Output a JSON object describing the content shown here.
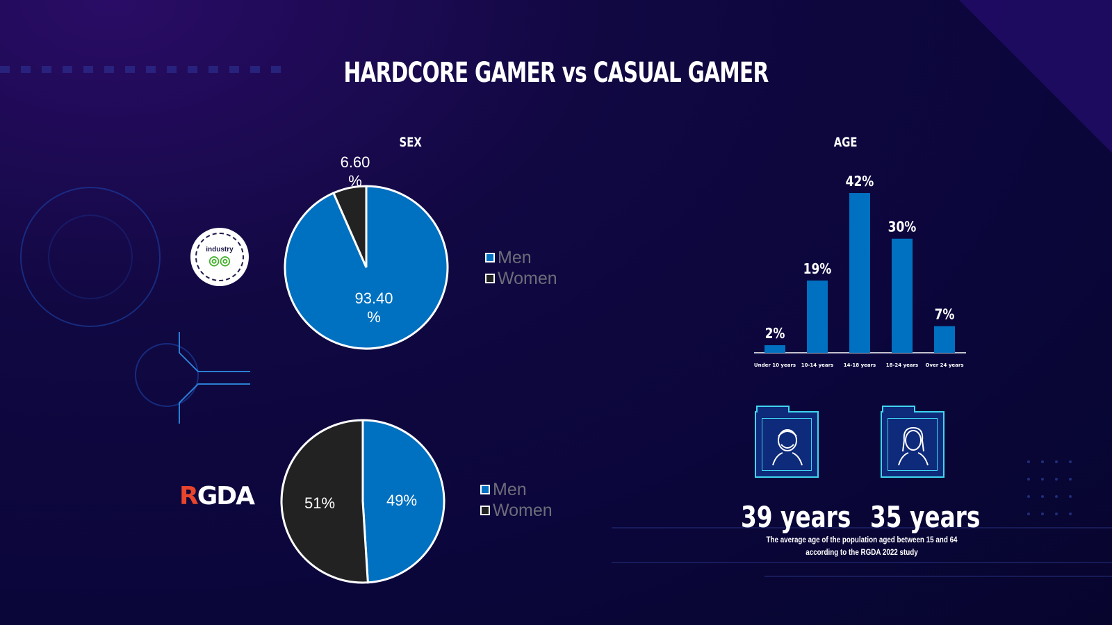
{
  "title": "HARDCORE GAMER vs CASUAL GAMER",
  "sex_section": {
    "label": "SEX"
  },
  "age_section": {
    "label": "AGE"
  },
  "colors": {
    "men": "#0070c0",
    "women": "#222222",
    "bar": "#0070c0",
    "accent": "#3fd6f0",
    "rgda_r": "#e8452c"
  },
  "logos": {
    "top": "industry",
    "bottom": {
      "r": "R",
      "rest": "GDA"
    }
  },
  "chart_data": [
    {
      "type": "pie",
      "slices": [
        {
          "name": "Men",
          "value": 93.4,
          "label": "93.40 %"
        },
        {
          "name": "Women",
          "value": 6.6,
          "label": "6.60 %"
        }
      ],
      "legend": [
        "Men",
        "Women"
      ],
      "legend_position": "right"
    },
    {
      "type": "pie",
      "slices": [
        {
          "name": "Men",
          "value": 49,
          "label": "49%"
        },
        {
          "name": "Women",
          "value": 51,
          "label": "51%"
        }
      ],
      "legend": [
        "Men",
        "Women"
      ],
      "legend_position": "right"
    },
    {
      "type": "bar",
      "title": "AGE",
      "categories": [
        "Under 10 years",
        "10-14 years",
        "14-18 years",
        "18-24 years",
        "Over 24 years"
      ],
      "values": [
        2,
        19,
        42,
        30,
        7
      ],
      "value_labels": [
        "2%",
        "19%",
        "42%",
        "30%",
        "7%"
      ],
      "ylim": [
        0,
        42
      ]
    }
  ],
  "average_age": {
    "men": "39 years",
    "women": "35 years",
    "note_line1": "The average age of the population aged between 15 and 64",
    "note_line2": "according to the RGDA 2022 study"
  }
}
